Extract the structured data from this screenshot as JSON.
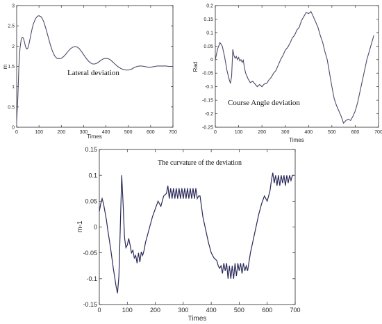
{
  "chart_data": [
    {
      "type": "line",
      "xlabel": "Times",
      "ylabel": "m",
      "annotations": [
        "Lateral deviation"
      ],
      "xlim": [
        0,
        700
      ],
      "ylim": [
        0,
        3
      ],
      "xticks": [
        0,
        100,
        200,
        300,
        400,
        500,
        600,
        700
      ],
      "yticks": [
        0,
        0.5,
        1,
        1.5,
        2,
        2.5,
        3
      ],
      "ytick_labels": [
        "0",
        "0.5",
        "1",
        "1.5",
        "2",
        "2.5",
        "3"
      ],
      "grid": false,
      "color": "#4a4a6a",
      "series": [
        {
          "x": [
            0,
            5,
            10,
            15,
            20,
            25,
            30,
            35,
            40,
            45,
            50,
            55,
            60,
            65,
            70,
            75,
            80,
            85,
            90,
            95,
            100,
            110,
            120,
            130,
            140,
            150,
            160,
            170,
            180,
            190,
            200,
            210,
            220,
            230,
            240,
            250,
            260,
            270,
            280,
            290,
            300,
            310,
            320,
            330,
            340,
            350,
            360,
            370,
            380,
            390,
            400,
            410,
            420,
            430,
            440,
            450,
            460,
            470,
            480,
            490,
            500,
            510,
            520,
            530,
            540,
            550,
            560,
            570,
            580,
            590,
            600,
            610,
            620,
            630,
            640,
            650,
            660,
            670,
            680,
            690,
            700
          ],
          "y": [
            0.15,
            0.7,
            1.5,
            1.95,
            2.15,
            2.22,
            2.2,
            2.1,
            1.98,
            1.93,
            1.95,
            2.05,
            2.18,
            2.32,
            2.45,
            2.55,
            2.62,
            2.68,
            2.72,
            2.74,
            2.75,
            2.72,
            2.62,
            2.45,
            2.25,
            2.05,
            1.88,
            1.76,
            1.7,
            1.69,
            1.7,
            1.74,
            1.8,
            1.87,
            1.93,
            1.97,
            1.99,
            1.98,
            1.94,
            1.87,
            1.79,
            1.71,
            1.64,
            1.59,
            1.56,
            1.56,
            1.58,
            1.62,
            1.66,
            1.69,
            1.7,
            1.69,
            1.66,
            1.61,
            1.56,
            1.51,
            1.47,
            1.44,
            1.42,
            1.41,
            1.41,
            1.42,
            1.45,
            1.48,
            1.5,
            1.51,
            1.51,
            1.5,
            1.49,
            1.48,
            1.48,
            1.49,
            1.5,
            1.51,
            1.51,
            1.51,
            1.51,
            1.51,
            1.5,
            1.5,
            1.5
          ]
        }
      ]
    },
    {
      "type": "line",
      "xlabel": "Times",
      "ylabel": "Rad",
      "annotations": [
        "Course Angle deviation"
      ],
      "xlim": [
        0,
        700
      ],
      "ylim": [
        -0.25,
        0.2
      ],
      "xticks": [
        0,
        100,
        200,
        300,
        400,
        500,
        600,
        700
      ],
      "yticks": [
        -0.25,
        -0.2,
        -0.15,
        -0.1,
        -0.05,
        0,
        0.05,
        0.1,
        0.15,
        0.2
      ],
      "ytick_labels": [
        "-0.25",
        "-0.2",
        "-0.15",
        "-0.1",
        "-0.05",
        "0",
        "0.05",
        "0.1",
        "0.15",
        "0.2"
      ],
      "grid": false,
      "color": "#4a4a6a",
      "series": [
        {
          "x": [
            0,
            10,
            20,
            30,
            40,
            50,
            60,
            65,
            70,
            75,
            80,
            85,
            90,
            95,
            100,
            105,
            110,
            115,
            120,
            125,
            130,
            140,
            150,
            160,
            170,
            180,
            190,
            200,
            210,
            220,
            230,
            240,
            250,
            260,
            270,
            280,
            290,
            300,
            310,
            320,
            330,
            340,
            350,
            360,
            370,
            380,
            390,
            400,
            410,
            420,
            430,
            440,
            450,
            460,
            470,
            480,
            490,
            500,
            510,
            520,
            530,
            540,
            550,
            560,
            570,
            580,
            590,
            600,
            610,
            620,
            630,
            640,
            650,
            660,
            670,
            680
          ],
          "y": [
            0.0,
            0.04,
            0.063,
            0.05,
            0.01,
            -0.04,
            -0.075,
            -0.088,
            -0.06,
            0.038,
            0.015,
            0.005,
            0.012,
            0.0,
            0.008,
            -0.005,
            0.0,
            -0.01,
            -0.002,
            -0.03,
            -0.05,
            -0.07,
            -0.085,
            -0.08,
            -0.09,
            -0.1,
            -0.092,
            -0.1,
            -0.09,
            -0.088,
            -0.075,
            -0.065,
            -0.05,
            -0.04,
            -0.02,
            0.0,
            0.015,
            0.035,
            0.045,
            0.06,
            0.08,
            0.09,
            0.11,
            0.12,
            0.145,
            0.16,
            0.175,
            0.17,
            0.178,
            0.16,
            0.14,
            0.12,
            0.09,
            0.065,
            0.03,
            0.0,
            -0.05,
            -0.1,
            -0.145,
            -0.17,
            -0.19,
            -0.21,
            -0.235,
            -0.225,
            -0.22,
            -0.225,
            -0.21,
            -0.19,
            -0.16,
            -0.12,
            -0.08,
            -0.04,
            0.0,
            0.03,
            0.06,
            0.09
          ]
        }
      ]
    },
    {
      "type": "line",
      "title": "The curvature of the deviation",
      "xlabel": "Times",
      "ylabel": "m-1",
      "xlim": [
        0,
        700
      ],
      "ylim": [
        -0.15,
        0.15
      ],
      "xticks": [
        0,
        100,
        200,
        300,
        400,
        500,
        600,
        700
      ],
      "yticks": [
        -0.15,
        -0.1,
        -0.05,
        0,
        0.05,
        0.1,
        0.15
      ],
      "ytick_labels": [
        "-0.15",
        "-0.1",
        "-0.05",
        "0",
        "0.05",
        "0.1",
        "0.15"
      ],
      "grid": false,
      "color": "#2a2a5a",
      "series": [
        {
          "x": [
            0,
            5,
            10,
            15,
            20,
            25,
            30,
            40,
            50,
            60,
            65,
            70,
            75,
            80,
            85,
            90,
            95,
            100,
            105,
            110,
            115,
            120,
            125,
            130,
            135,
            140,
            145,
            150,
            155,
            160,
            165,
            170,
            180,
            190,
            200,
            210,
            220,
            230,
            240,
            245,
            250,
            255,
            260,
            265,
            270,
            275,
            280,
            285,
            290,
            295,
            300,
            305,
            310,
            315,
            320,
            325,
            330,
            335,
            340,
            345,
            350,
            355,
            360,
            370,
            380,
            390,
            400,
            410,
            420,
            425,
            430,
            435,
            440,
            445,
            450,
            455,
            460,
            465,
            470,
            475,
            480,
            485,
            490,
            495,
            500,
            505,
            510,
            515,
            520,
            525,
            530,
            540,
            550,
            560,
            570,
            580,
            590,
            600,
            610,
            615,
            620,
            625,
            630,
            635,
            640,
            645,
            650,
            655,
            660,
            665,
            670,
            675,
            680,
            685,
            690,
            695
          ],
          "y": [
            0.03,
            0.045,
            0.055,
            0.045,
            0.03,
            0.015,
            -0.005,
            -0.04,
            -0.08,
            -0.115,
            -0.128,
            -0.095,
            0.0,
            0.1,
            0.045,
            -0.02,
            -0.04,
            -0.035,
            -0.022,
            -0.035,
            -0.05,
            -0.045,
            -0.06,
            -0.055,
            -0.07,
            -0.05,
            -0.068,
            -0.048,
            -0.055,
            -0.045,
            -0.03,
            -0.02,
            0.0,
            0.02,
            0.035,
            0.05,
            0.04,
            0.06,
            0.065,
            0.08,
            0.055,
            0.075,
            0.055,
            0.075,
            0.055,
            0.075,
            0.055,
            0.075,
            0.055,
            0.075,
            0.055,
            0.075,
            0.055,
            0.075,
            0.055,
            0.075,
            0.055,
            0.075,
            0.055,
            0.075,
            0.055,
            0.06,
            0.06,
            0.02,
            -0.005,
            -0.03,
            -0.05,
            -0.06,
            -0.065,
            -0.075,
            -0.08,
            -0.075,
            -0.09,
            -0.07,
            -0.085,
            -0.07,
            -0.1,
            -0.075,
            -0.1,
            -0.075,
            -0.1,
            -0.07,
            -0.095,
            -0.07,
            -0.085,
            -0.07,
            -0.09,
            -0.07,
            -0.085,
            -0.075,
            -0.085,
            -0.05,
            -0.025,
            0.0,
            0.025,
            0.045,
            0.06,
            0.05,
            0.07,
            0.09,
            0.105,
            0.085,
            0.1,
            0.08,
            0.1,
            0.08,
            0.1,
            0.085,
            0.1,
            0.08,
            0.1,
            0.085,
            0.1,
            0.09,
            0.1,
            0.1
          ]
        }
      ]
    }
  ]
}
